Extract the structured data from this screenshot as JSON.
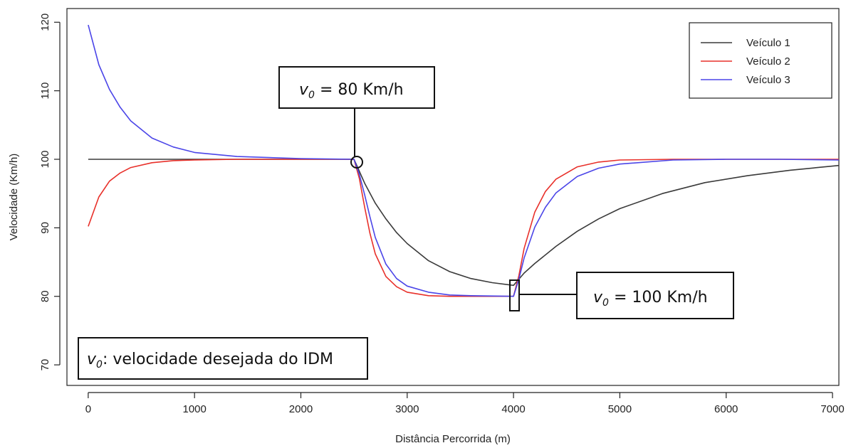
{
  "chart_data": {
    "type": "line",
    "xlabel": "Distância Percorrida (m)",
    "ylabel": "Velocidade (Km/h)",
    "xlim": [
      -200,
      7060
    ],
    "ylim": [
      67,
      122
    ],
    "xticks": [
      0,
      1000,
      2000,
      3000,
      4000,
      5000,
      6000,
      7000
    ],
    "yticks": [
      70,
      80,
      90,
      100,
      110,
      120
    ],
    "legend_position": "top-right",
    "series": [
      {
        "name": "Veículo 1",
        "color": "#3a3a3a",
        "x": [
          0,
          2500,
          2600,
          2700,
          2800,
          2900,
          3000,
          3200,
          3400,
          3600,
          3800,
          4000,
          4100,
          4200,
          4400,
          4600,
          4800,
          5000,
          5400,
          5800,
          6200,
          6600,
          7060
        ],
        "y": [
          100,
          100,
          96.5,
          93.6,
          91.3,
          89.3,
          87.7,
          85.2,
          83.6,
          82.6,
          82.0,
          81.6,
          83.4,
          84.8,
          87.3,
          89.5,
          91.3,
          92.8,
          95.0,
          96.6,
          97.6,
          98.4,
          99.1
        ]
      },
      {
        "name": "Veículo 2",
        "color": "#e8302a",
        "x": [
          0,
          100,
          200,
          300,
          400,
          600,
          800,
          1000,
          1400,
          2000,
          2500,
          2550,
          2600,
          2650,
          2700,
          2800,
          2900,
          3000,
          3200,
          3400,
          3600,
          4000,
          4050,
          4100,
          4200,
          4300,
          4400,
          4600,
          4800,
          5000,
          5500,
          6000,
          7060
        ],
        "y": [
          90.2,
          94.5,
          96.8,
          98.0,
          98.8,
          99.5,
          99.8,
          99.9,
          100,
          100,
          100,
          97.2,
          93.0,
          89.2,
          86.2,
          82.9,
          81.4,
          80.6,
          80.1,
          80.0,
          80.0,
          80.0,
          83.0,
          87.0,
          92.3,
          95.3,
          97.1,
          98.9,
          99.6,
          99.9,
          100,
          100,
          100
        ]
      },
      {
        "name": "Veículo 3",
        "color": "#4b45e8",
        "x": [
          0,
          100,
          200,
          300,
          400,
          600,
          800,
          1000,
          1400,
          2000,
          2500,
          2550,
          2600,
          2650,
          2700,
          2800,
          2900,
          3000,
          3200,
          3400,
          3600,
          4000,
          4050,
          4100,
          4200,
          4300,
          4400,
          4600,
          4800,
          5000,
          5500,
          6000,
          6500,
          7060
        ],
        "y": [
          119.6,
          113.8,
          110.2,
          107.6,
          105.6,
          103.1,
          101.8,
          101.0,
          100.4,
          100.1,
          100,
          97.8,
          94.8,
          91.6,
          88.6,
          84.7,
          82.6,
          81.5,
          80.6,
          80.2,
          80.1,
          80.0,
          82.5,
          85.6,
          90.1,
          93.0,
          95.1,
          97.5,
          98.7,
          99.3,
          99.9,
          100,
          100,
          99.9
        ]
      }
    ],
    "annotations": [
      {
        "var": "v",
        "sub": "0",
        "text": " = 80 Km/h"
      },
      {
        "var": "v",
        "sub": "0",
        "text": " = 100 Km/h"
      },
      {
        "var": "v",
        "sub": "0",
        "text": ": velocidade desejada do IDM"
      }
    ]
  }
}
